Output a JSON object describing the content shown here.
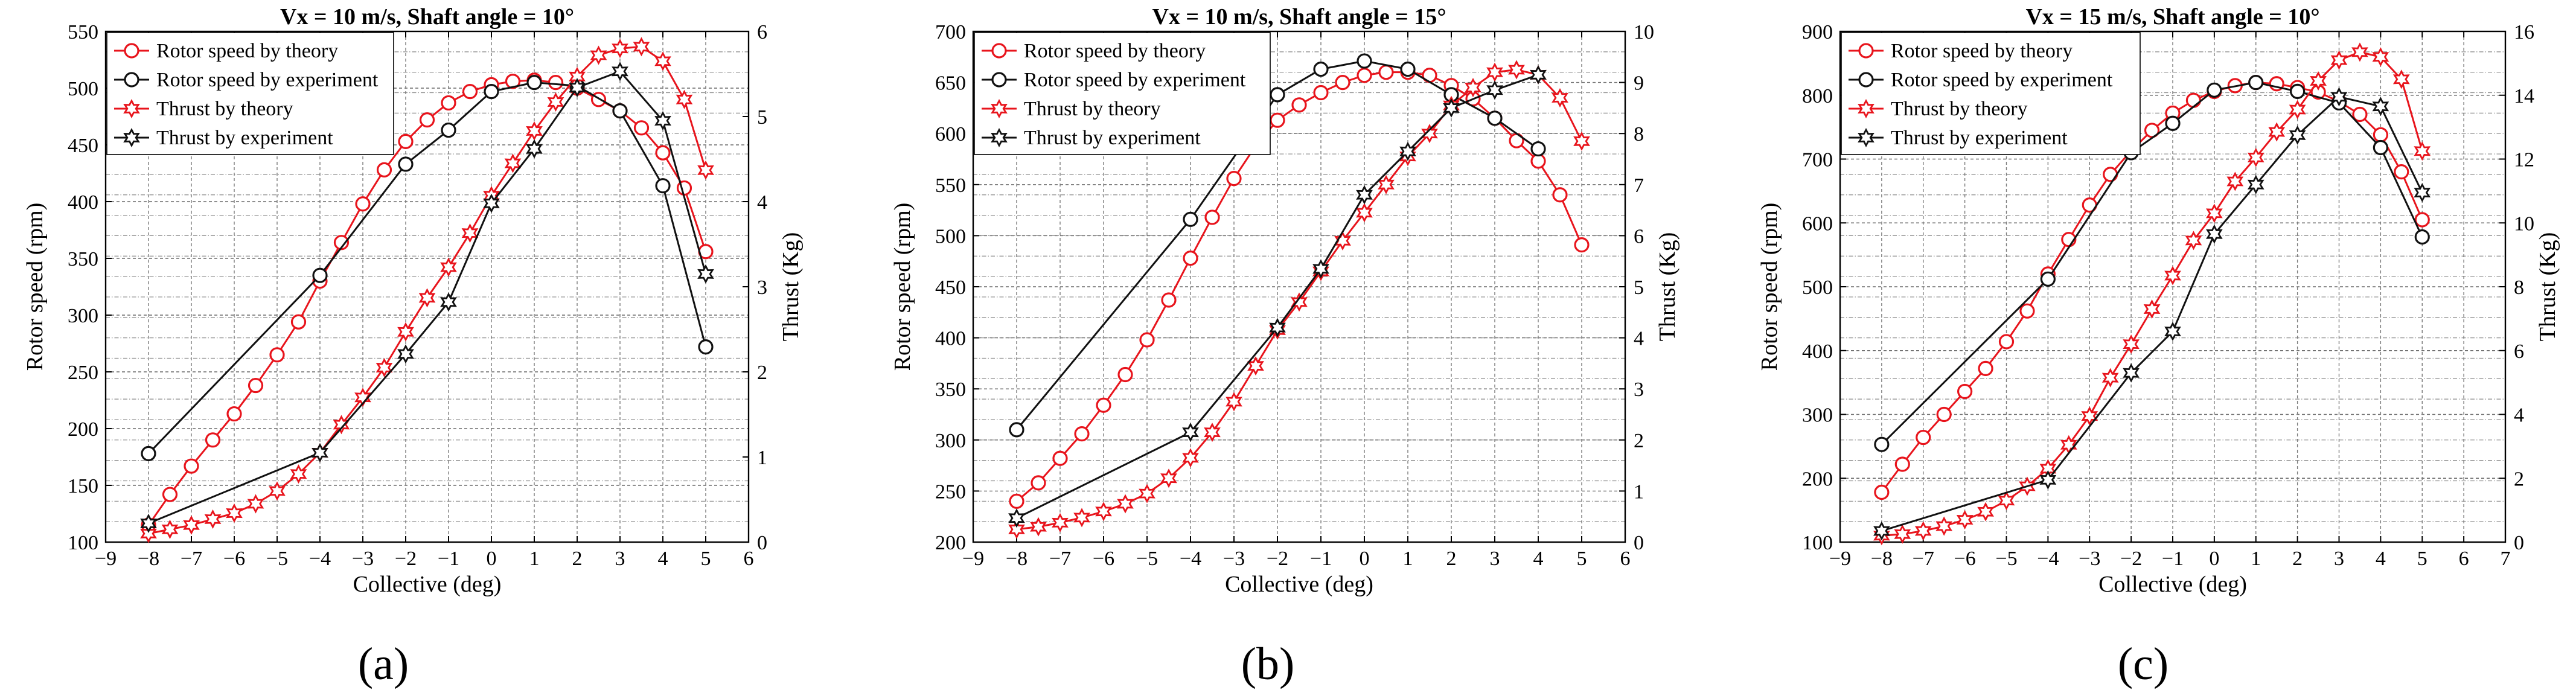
{
  "colors": {
    "theory": "#e8141c",
    "experiment": "#111111",
    "grid": "#8c8c8c"
  },
  "legend_entries": [
    "Rotor speed by theory",
    "Rotor speed by experiment",
    "Thrust by theory",
    "Thrust by experiment"
  ],
  "chart_data": [
    {
      "type": "line",
      "panel_label": "(a)",
      "title": "Vx = 10 m/s, Shaft angle = 10°",
      "xlabel": "Collective (deg)",
      "ylabel": "Rotor speed (rpm)",
      "y2label": "Thrust (Kg)",
      "xlim": [
        -9,
        6
      ],
      "ylim": [
        100,
        550
      ],
      "y2lim": [
        0,
        6
      ],
      "xticks": [
        -9,
        -8,
        -7,
        -6,
        -5,
        -4,
        -3,
        -2,
        -1,
        0,
        1,
        2,
        3,
        4,
        5,
        6
      ],
      "yticks": [
        100,
        150,
        200,
        250,
        300,
        350,
        400,
        450,
        500,
        550
      ],
      "y2ticks": [
        0,
        1,
        2,
        3,
        4,
        5,
        6
      ],
      "grid": true,
      "legend": "top-left",
      "series": [
        {
          "name": "Rotor speed by theory",
          "axis": "left",
          "marker": "circle",
          "color": "#e8141c",
          "x": [
            -8,
            -7.5,
            -7,
            -6.5,
            -6,
            -5.5,
            -5,
            -4.5,
            -4,
            -3.5,
            -3,
            -2.5,
            -2,
            -1.5,
            -1,
            -0.5,
            0,
            0.5,
            1,
            1.5,
            2,
            2.5,
            3,
            3.5,
            4,
            4.5,
            5
          ],
          "y": [
            115,
            142,
            167,
            190,
            213,
            238,
            265,
            294,
            330,
            364,
            398,
            428,
            453,
            472,
            487,
            497,
            503,
            506,
            507,
            505,
            500,
            490,
            480,
            465,
            443,
            412,
            356
          ]
        },
        {
          "name": "Rotor speed by experiment",
          "axis": "left",
          "marker": "circle",
          "color": "#111111",
          "x": [
            -8,
            -4,
            -2,
            -1,
            0,
            1,
            2,
            3,
            4,
            5
          ],
          "y": [
            178,
            335,
            433,
            463,
            497,
            505,
            502,
            480,
            414,
            272
          ]
        },
        {
          "name": "Thrust by theory",
          "axis": "right",
          "marker": "star",
          "color": "#e8141c",
          "x": [
            -8,
            -7.5,
            -7,
            -6.5,
            -6,
            -5.5,
            -5,
            -4.5,
            -4,
            -3.5,
            -3,
            -2.5,
            -2,
            -1.5,
            -1,
            -0.5,
            0,
            0.5,
            1,
            1.5,
            2,
            2.5,
            3,
            3.5,
            4,
            4.5,
            5
          ],
          "y": [
            0.1,
            0.15,
            0.2,
            0.27,
            0.34,
            0.45,
            0.6,
            0.8,
            1.05,
            1.38,
            1.7,
            2.05,
            2.47,
            2.87,
            3.23,
            3.63,
            4.07,
            4.45,
            4.83,
            5.17,
            5.47,
            5.72,
            5.8,
            5.82,
            5.65,
            5.2,
            4.37
          ]
        },
        {
          "name": "Thrust by experiment",
          "axis": "right",
          "marker": "star",
          "color": "#111111",
          "x": [
            -8,
            -4,
            -2,
            -1,
            0,
            1,
            2,
            3,
            4,
            5
          ],
          "y": [
            0.22,
            1.05,
            2.21,
            2.82,
            3.98,
            4.62,
            5.34,
            5.53,
            4.95,
            3.15
          ]
        }
      ]
    },
    {
      "type": "line",
      "panel_label": "(b)",
      "title": "Vx = 10 m/s, Shaft angle = 15°",
      "xlabel": "Collective (deg)",
      "ylabel": "Rotor speed (rpm)",
      "y2label": "Thrust (Kg)",
      "xlim": [
        -9,
        6
      ],
      "ylim": [
        200,
        700
      ],
      "y2lim": [
        0,
        10
      ],
      "xticks": [
        -9,
        -8,
        -7,
        -6,
        -5,
        -4,
        -3,
        -2,
        -1,
        0,
        1,
        2,
        3,
        4,
        5,
        6
      ],
      "yticks": [
        200,
        250,
        300,
        350,
        400,
        450,
        500,
        550,
        600,
        650,
        700
      ],
      "y2ticks": [
        0,
        1,
        2,
        3,
        4,
        5,
        6,
        7,
        8,
        9,
        10
      ],
      "grid": true,
      "legend": "top-left",
      "series": [
        {
          "name": "Rotor speed by theory",
          "axis": "left",
          "marker": "circle",
          "color": "#e8141c",
          "x": [
            -8,
            -7.5,
            -7,
            -6.5,
            -6,
            -5.5,
            -5,
            -4.5,
            -4,
            -3.5,
            -3,
            -2.5,
            -2,
            -1.5,
            -1,
            -0.5,
            0,
            0.5,
            1,
            1.5,
            2,
            2.5,
            3,
            3.5,
            4,
            4.5,
            5
          ],
          "y": [
            240,
            258,
            282,
            306,
            334,
            364,
            398,
            437,
            478,
            518,
            556,
            588,
            613,
            628,
            640,
            650,
            657,
            660,
            660,
            657,
            647,
            634,
            615,
            593,
            573,
            540,
            491
          ]
        },
        {
          "name": "Rotor speed by experiment",
          "axis": "left",
          "marker": "circle",
          "color": "#111111",
          "x": [
            -8,
            -4,
            -2,
            -1,
            0,
            1,
            2,
            3,
            4
          ],
          "y": [
            310,
            516,
            638,
            663,
            671,
            663,
            638,
            615,
            585
          ]
        },
        {
          "name": "Thrust by theory",
          "axis": "right",
          "marker": "star",
          "color": "#e8141c",
          "x": [
            -8,
            -7.5,
            -7,
            -6.5,
            -6,
            -5.5,
            -5,
            -4.5,
            -4,
            -3.5,
            -3,
            -2.5,
            -2,
            -1.5,
            -1,
            -0.5,
            0,
            0.5,
            1,
            1.5,
            2,
            2.5,
            3,
            3.5,
            4,
            4.5,
            5
          ],
          "y": [
            0.25,
            0.3,
            0.38,
            0.48,
            0.6,
            0.75,
            0.95,
            1.25,
            1.65,
            2.15,
            2.75,
            3.45,
            4.15,
            4.7,
            5.3,
            5.9,
            6.45,
            7.0,
            7.55,
            8.0,
            8.55,
            8.9,
            9.2,
            9.25,
            9.15,
            8.7,
            7.85
          ]
        },
        {
          "name": "Thrust by experiment",
          "axis": "right",
          "marker": "star",
          "color": "#111111",
          "x": [
            -8,
            -4,
            -2,
            -1,
            0,
            1,
            2,
            3,
            4
          ],
          "y": [
            0.47,
            2.15,
            4.2,
            5.35,
            6.8,
            7.65,
            8.5,
            8.85,
            9.15
          ]
        }
      ]
    },
    {
      "type": "line",
      "panel_label": "(c)",
      "title": "Vx = 15 m/s, Shaft angle = 10°",
      "xlabel": "Collective (deg)",
      "ylabel": "Rotor speed (rpm)",
      "y2label": "Thrust (Kg)",
      "xlim": [
        -9,
        7
      ],
      "ylim": [
        100,
        900
      ],
      "y2lim": [
        0,
        16
      ],
      "xticks": [
        -9,
        -8,
        -7,
        -6,
        -5,
        -4,
        -3,
        -2,
        -1,
        0,
        1,
        2,
        3,
        4,
        5,
        6,
        7
      ],
      "yticks": [
        100,
        200,
        300,
        400,
        500,
        600,
        700,
        800,
        900
      ],
      "y2ticks": [
        0,
        2,
        4,
        6,
        8,
        10,
        12,
        14,
        16
      ],
      "grid": true,
      "legend": "top-left",
      "series": [
        {
          "name": "Rotor speed by theory",
          "axis": "left",
          "marker": "circle",
          "color": "#e8141c",
          "x": [
            -8,
            -7.5,
            -7,
            -6.5,
            -6,
            -5.5,
            -5,
            -4.5,
            -4,
            -3.5,
            -3,
            -2.5,
            -2,
            -1.5,
            -1,
            -0.5,
            0,
            0.5,
            1,
            1.5,
            2,
            2.5,
            3,
            3.5,
            4,
            4.5,
            5
          ],
          "y": [
            178,
            222,
            264,
            300,
            336,
            372,
            414,
            462,
            520,
            574,
            628,
            676,
            713,
            745,
            772,
            792,
            806,
            815,
            820,
            818,
            812,
            805,
            790,
            770,
            738,
            680,
            605
          ]
        },
        {
          "name": "Rotor speed by experiment",
          "axis": "left",
          "marker": "circle",
          "color": "#111111",
          "x": [
            -8,
            -4,
            -2,
            -1,
            0,
            1,
            2,
            3,
            4,
            5
          ],
          "y": [
            253,
            512,
            710,
            756,
            808,
            820,
            806,
            788,
            718,
            578
          ]
        },
        {
          "name": "Thrust by theory",
          "axis": "right",
          "marker": "star",
          "color": "#e8141c",
          "x": [
            -8,
            -7.5,
            -7,
            -6.5,
            -6,
            -5.5,
            -5,
            -4.5,
            -4,
            -3.5,
            -3,
            -2.5,
            -2,
            -1.5,
            -1,
            -0.5,
            0,
            0.5,
            1,
            1.5,
            2,
            2.5,
            3,
            3.5,
            4,
            4.5,
            5
          ],
          "y": [
            0.2,
            0.25,
            0.35,
            0.5,
            0.7,
            0.95,
            1.3,
            1.75,
            2.3,
            3.05,
            3.95,
            5.15,
            6.2,
            7.3,
            8.35,
            9.45,
            10.3,
            11.3,
            12.05,
            12.85,
            13.55,
            14.45,
            15.1,
            15.35,
            15.2,
            14.5,
            12.25
          ]
        },
        {
          "name": "Thrust by experiment",
          "axis": "right",
          "marker": "star",
          "color": "#111111",
          "x": [
            -8,
            -4,
            -2,
            -1,
            0,
            1,
            2,
            3,
            4,
            5
          ],
          "y": [
            0.35,
            1.95,
            5.3,
            6.6,
            9.65,
            11.2,
            12.75,
            13.95,
            13.65,
            10.95
          ]
        }
      ]
    }
  ]
}
